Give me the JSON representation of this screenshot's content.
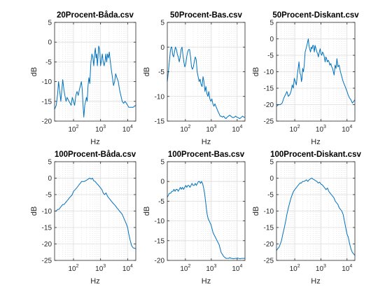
{
  "figure": {
    "background": "#ffffff",
    "line_color": "#0072bd",
    "axis_color": "#262626",
    "grid_color": "#dcdcdc"
  },
  "chart_data": [
    {
      "type": "line",
      "title": "20Procent-Båda.csv",
      "xlabel": "Hz",
      "ylabel": "dB",
      "xscale": "log",
      "xlim": [
        20,
        20000
      ],
      "ylim": [
        -20,
        5
      ],
      "yticks": [
        5,
        0,
        -5,
        -10,
        -15,
        -20
      ],
      "xticks": [
        100,
        1000,
        10000
      ],
      "xtick_labels": [
        {
          "base": "10",
          "exp": "2"
        },
        {
          "base": "10",
          "exp": "3"
        },
        {
          "base": "10",
          "exp": "4"
        }
      ],
      "grid": true,
      "series": [
        {
          "x": [
            20,
            23,
            26,
            28,
            31,
            34,
            37,
            40,
            44,
            48,
            53,
            58,
            63,
            68,
            75,
            82,
            90,
            100,
            110,
            122,
            135,
            150,
            165,
            180,
            195,
            210,
            225,
            240,
            260,
            280,
            300,
            320,
            345,
            370,
            400,
            440,
            480,
            520,
            560,
            600,
            640,
            680,
            720,
            760,
            800,
            850,
            900,
            950,
            1000,
            1080,
            1160,
            1250,
            1350,
            1450,
            1560,
            1680,
            1800,
            1950,
            2100,
            2300,
            2500,
            2750,
            3000,
            3300,
            3600,
            4000,
            4500,
            5000,
            5600,
            6300,
            7100,
            8000,
            9000,
            10000,
            11000,
            12500,
            14000,
            16000,
            18000,
            20000
          ],
          "y": [
            -17,
            -16,
            -13,
            -10,
            -12.5,
            -15,
            -12,
            -9.5,
            -12,
            -13.5,
            -15,
            -14,
            -14.5,
            -15,
            -15.5,
            -16,
            -14,
            -15,
            -16,
            -13.5,
            -12.5,
            -13.5,
            -12,
            -11,
            -10,
            -12,
            -16,
            -19,
            -16,
            -15,
            -14,
            -15,
            -11,
            -9,
            -10.5,
            -5,
            -3,
            -4,
            -6,
            -3,
            -1.5,
            -4,
            -3,
            -6,
            -4,
            -1,
            -1.5,
            -3,
            -6,
            -4.5,
            -3,
            -5,
            -6,
            -5,
            -3,
            -5,
            -3,
            -4,
            -2.5,
            -5,
            -7,
            -9,
            -11,
            -10,
            -8,
            -9,
            -10,
            -12,
            -13.5,
            -15,
            -15.5,
            -15,
            -15.5,
            -16,
            -16.5,
            -16.5,
            -16.5,
            -16.5,
            -16.2,
            -16
          ]
        }
      ]
    },
    {
      "type": "line",
      "title": "50Procent-Bas.csv",
      "xlabel": "Hz",
      "ylabel": "dB",
      "xscale": "log",
      "xlim": [
        20,
        20000
      ],
      "ylim": [
        -15,
        5
      ],
      "yticks": [
        5,
        0,
        -5,
        -10,
        -15
      ],
      "xticks": [
        100,
        1000,
        10000
      ],
      "xtick_labels": [
        {
          "base": "10",
          "exp": "2"
        },
        {
          "base": "10",
          "exp": "3"
        },
        {
          "base": "10",
          "exp": "4"
        }
      ],
      "grid": true,
      "series": [
        {
          "x": [
            20,
            22,
            24,
            26,
            28,
            30,
            32,
            35,
            38,
            41,
            45,
            49,
            53,
            58,
            63,
            68,
            74,
            80,
            87,
            95,
            103,
            112,
            122,
            133,
            145,
            158,
            172,
            187,
            203,
            220,
            240,
            260,
            285,
            310,
            340,
            370,
            400,
            440,
            480,
            520,
            570,
            620,
            680,
            740,
            800,
            880,
            960,
            1050,
            1150,
            1260,
            1380,
            1500,
            1650,
            1800,
            2000,
            2200,
            2400,
            2700,
            3000,
            3300,
            3700,
            4100,
            4600,
            5100,
            5700,
            6300,
            7000,
            7800,
            8700,
            9700,
            11000,
            12500,
            14000,
            16000,
            18000,
            20000
          ],
          "y": [
            -7,
            -5,
            -3,
            -1,
            0,
            0,
            -1.5,
            -2,
            -1,
            0,
            -0.5,
            -1.5,
            -2,
            -3,
            -2,
            -0.5,
            0,
            -1.5,
            -3,
            -4,
            -3.5,
            -2,
            -1,
            -0.5,
            -0.5,
            -2,
            -4,
            -4.5,
            -4,
            -3,
            -2,
            -2.5,
            -5,
            -6,
            -7,
            -6.5,
            -7.5,
            -8,
            -6,
            -7,
            -9,
            -8,
            -9.5,
            -10,
            -9,
            -10.5,
            -11,
            -10.5,
            -11.5,
            -12,
            -11.5,
            -12,
            -12.5,
            -13,
            -13.5,
            -14,
            -14,
            -14.2,
            -14,
            -14.3,
            -14.5,
            -14.2,
            -14,
            -13.8,
            -14,
            -14.2,
            -14.3,
            -14.2,
            -14,
            -14.2,
            -14.3,
            -14.5,
            -14.3,
            -14,
            -14.2,
            -14.2
          ]
        }
      ]
    },
    {
      "type": "line",
      "title": "50Procent-Diskant.csv",
      "xlabel": "Hz",
      "ylabel": "dB",
      "xscale": "log",
      "xlim": [
        20,
        20000
      ],
      "ylim": [
        -25,
        5
      ],
      "yticks": [
        5,
        0,
        -5,
        -10,
        -15,
        -20,
        -25
      ],
      "xticks": [
        100,
        1000,
        10000
      ],
      "xtick_labels": [
        {
          "base": "10",
          "exp": "2"
        },
        {
          "base": "10",
          "exp": "3"
        },
        {
          "base": "10",
          "exp": "4"
        }
      ],
      "grid": true,
      "series": [
        {
          "x": [
            20,
            24,
            28,
            33,
            38,
            44,
            50,
            57,
            64,
            72,
            80,
            88,
            96,
            105,
            115,
            125,
            135,
            145,
            158,
            170,
            180,
            190,
            200,
            215,
            230,
            250,
            270,
            290,
            310,
            330,
            350,
            370,
            400,
            430,
            460,
            490,
            520,
            560,
            600,
            650,
            700,
            750,
            800,
            870,
            940,
            1000,
            1080,
            1160,
            1250,
            1350,
            1450,
            1550,
            1650,
            1750,
            1900,
            2050,
            2200,
            2400,
            2600,
            2800,
            3000,
            3200,
            3500,
            3800,
            4100,
            4500,
            5000,
            5600,
            6300,
            7100,
            8000,
            9000,
            10000,
            11000,
            12500,
            14000,
            16000,
            18000,
            20000
          ],
          "y": [
            -20.5,
            -20,
            -20,
            -19.5,
            -18,
            -17,
            -16,
            -17.5,
            -17,
            -16,
            -14,
            -15,
            -12,
            -13,
            -14,
            -11,
            -9,
            -7,
            -10.5,
            -11,
            -13,
            -12,
            -9,
            -10,
            -8,
            -4,
            -3,
            -2,
            -1,
            0,
            -2,
            -3,
            -4,
            -2.5,
            -3,
            -2,
            -2,
            -4,
            -2,
            -3,
            -4,
            -4.5,
            -5.5,
            -4,
            -3,
            -4.5,
            -5,
            -4,
            -4.5,
            -5.5,
            -7,
            -5.5,
            -6,
            -7,
            -6.5,
            -7,
            -8,
            -7.5,
            -8.5,
            -9,
            -10,
            -11,
            -8,
            -9,
            -6,
            -8.5,
            -8,
            -10,
            -11.5,
            -13,
            -14,
            -15,
            -16,
            -17,
            -18,
            -18.5,
            -19.5,
            -19,
            -18.5
          ]
        }
      ]
    },
    {
      "type": "line",
      "title": "100Procent-Båda.csv",
      "xlabel": "Hz",
      "ylabel": "dB",
      "xscale": "log",
      "xlim": [
        20,
        20000
      ],
      "ylim": [
        -25,
        5
      ],
      "yticks": [
        5,
        0,
        -5,
        -10,
        -15,
        -20,
        -25
      ],
      "xticks": [
        100,
        1000,
        10000
      ],
      "xtick_labels": [
        {
          "base": "10",
          "exp": "2"
        },
        {
          "base": "10",
          "exp": "3"
        },
        {
          "base": "10",
          "exp": "4"
        }
      ],
      "grid": true,
      "series": [
        {
          "x": [
            20,
            23,
            26,
            29,
            32,
            36,
            40,
            45,
            50,
            56,
            63,
            70,
            80,
            90,
            100,
            115,
            130,
            145,
            160,
            180,
            200,
            225,
            250,
            280,
            320,
            360,
            400,
            450,
            500,
            560,
            630,
            700,
            800,
            900,
            1000,
            1120,
            1250,
            1400,
            1600,
            1800,
            2000,
            2250,
            2500,
            2800,
            3200,
            3600,
            4000,
            4500,
            5000,
            5600,
            6300,
            7100,
            8000,
            9000,
            10000,
            11000,
            12500,
            14000,
            16000,
            18000,
            20000
          ],
          "y": [
            -10,
            -10,
            -9.5,
            -9.5,
            -9,
            -8.5,
            -8,
            -8,
            -7.5,
            -7,
            -6.5,
            -6,
            -5.5,
            -5,
            -4,
            -3.5,
            -3,
            -2.5,
            -2,
            -1.5,
            -1,
            -1,
            -1,
            -0.8,
            -0.5,
            -0.2,
            0,
            -0.3,
            0,
            -0.8,
            -1,
            -1.5,
            -2,
            -2.5,
            -3,
            -3.5,
            -4.5,
            -5,
            -4.5,
            -5.5,
            -6,
            -6.5,
            -7,
            -7.5,
            -8,
            -8.5,
            -9,
            -9.5,
            -10,
            -10.5,
            -11,
            -12,
            -13,
            -14,
            -15,
            -17,
            -19,
            -20.5,
            -21.2,
            -21.3,
            -21.5
          ]
        }
      ]
    },
    {
      "type": "line",
      "title": "100Procent-Bas.csv",
      "xlabel": "Hz",
      "ylabel": "dB",
      "xscale": "log",
      "xlim": [
        20,
        20000
      ],
      "ylim": [
        -20,
        5
      ],
      "yticks": [
        5,
        0,
        -5,
        -10,
        -15,
        -20
      ],
      "xticks": [
        100,
        1000,
        10000
      ],
      "xtick_labels": [
        {
          "base": "10",
          "exp": "2"
        },
        {
          "base": "10",
          "exp": "3"
        },
        {
          "base": "10",
          "exp": "4"
        }
      ],
      "grid": true,
      "series": [
        {
          "x": [
            20,
            22,
            24,
            27,
            30,
            33,
            36,
            40,
            44,
            48,
            53,
            58,
            64,
            70,
            77,
            85,
            94,
            103,
            113,
            124,
            136,
            150,
            165,
            180,
            198,
            218,
            240,
            264,
            290,
            320,
            350,
            385,
            420,
            460,
            500,
            550,
            600,
            650,
            700,
            760,
            830,
            900,
            980,
            1070,
            1170,
            1280,
            1400,
            1530,
            1670,
            1830,
            2000,
            2200,
            2400,
            2700,
            3000,
            3300,
            3700,
            4100,
            4600,
            5200,
            5800,
            6500,
            7300,
            8200,
            9200,
            10300,
            11500,
            13000,
            14500,
            16000,
            18000,
            20000
          ],
          "y": [
            -4,
            -3.5,
            -3,
            -3,
            -2.5,
            -2.5,
            -2,
            -2.5,
            -2,
            -2,
            -2.5,
            -2,
            -1.5,
            -2,
            -1.5,
            -2,
            -1.5,
            -1,
            -1.5,
            -1,
            -1,
            -1.5,
            -1,
            -0.5,
            -1,
            -1,
            -0.5,
            -1,
            -0.5,
            0,
            0,
            -0.5,
            0,
            -0.5,
            -1.5,
            -3,
            -5,
            -7,
            -8.5,
            -9.5,
            -10,
            -10.5,
            -11,
            -12,
            -13,
            -13.5,
            -14,
            -14.5,
            -15,
            -15.5,
            -16,
            -17,
            -18,
            -18.5,
            -19,
            -19.2,
            -19.5,
            -19.5,
            -19.5,
            -19.3,
            -19.5,
            -19.5,
            -19.6,
            -19.5,
            -19.5,
            -19.4,
            -19.5,
            -19.6,
            -19.5,
            -19.5,
            -19.5,
            -19.5
          ]
        }
      ]
    },
    {
      "type": "line",
      "title": "100Procent-Diskant.csv",
      "xlabel": "Hz",
      "ylabel": "dB",
      "xscale": "log",
      "xlim": [
        20,
        20000
      ],
      "ylim": [
        -25,
        5
      ],
      "yticks": [
        5,
        0,
        -5,
        -10,
        -15,
        -20,
        -25
      ],
      "xticks": [
        100,
        1000,
        10000
      ],
      "xtick_labels": [
        {
          "base": "10",
          "exp": "2"
        },
        {
          "base": "10",
          "exp": "3"
        },
        {
          "base": "10",
          "exp": "4"
        }
      ],
      "grid": true,
      "series": [
        {
          "x": [
            20,
            22,
            25,
            28,
            31,
            35,
            40,
            45,
            50,
            57,
            64,
            72,
            80,
            90,
            100,
            112,
            125,
            140,
            158,
            178,
            200,
            225,
            250,
            280,
            316,
            355,
            400,
            450,
            500,
            560,
            630,
            700,
            790,
            890,
            1000,
            1120,
            1260,
            1410,
            1580,
            1780,
            2000,
            2240,
            2510,
            2820,
            3160,
            3550,
            3980,
            4470,
            5010,
            5620,
            6310,
            7080,
            7940,
            8910,
            10000,
            11200,
            12600,
            14100,
            15800,
            17800,
            20000
          ],
          "y": [
            -22,
            -21.5,
            -21,
            -20,
            -19,
            -17,
            -15,
            -13,
            -11,
            -9,
            -7.5,
            -6,
            -5,
            -4,
            -3.5,
            -3,
            -2.5,
            -2,
            -1.5,
            -1.5,
            -1,
            -1,
            -0.8,
            -0.5,
            -1,
            -0.5,
            -0.2,
            0,
            -0.3,
            -0.5,
            -0.8,
            -1,
            -1.5,
            -1.2,
            -1.8,
            -2,
            -2.5,
            -3,
            -3.5,
            -3,
            -4,
            -4.5,
            -5,
            -5.5,
            -6,
            -7,
            -7.5,
            -8,
            -9,
            -9.5,
            -10,
            -11,
            -13,
            -15,
            -17,
            -18,
            -20,
            -21.5,
            -22.5,
            -23,
            -23.5
          ]
        }
      ]
    }
  ]
}
